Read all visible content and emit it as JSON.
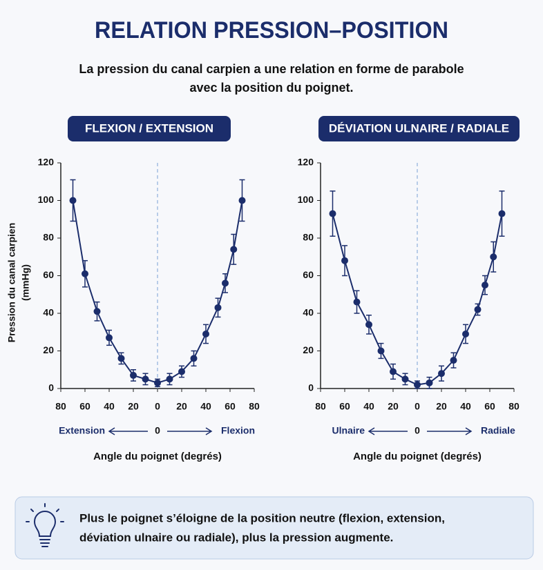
{
  "header": {
    "title": "RELATION PRESSION–POSITION",
    "subtitle": [
      "La pression du canal carpien a une relation en forme de parabole",
      "avec la position du poignet."
    ]
  },
  "chart_data": [
    {
      "type": "scatter",
      "title": "FLEXION / EXTENSION",
      "color": "#1b2d6b",
      "ylabel": [
        "Pression du canal carpien",
        "(mmHg)"
      ],
      "xlabel": "Angle du poignet (degrés)",
      "direction_labels": {
        "left": "Extension",
        "center": "0",
        "right": "Flexion"
      },
      "x": [
        -70,
        -60,
        -50,
        -40,
        -30,
        -20,
        -10,
        0,
        10,
        20,
        30,
        40,
        50,
        56,
        63,
        70
      ],
      "values": [
        100,
        61,
        41,
        27,
        16,
        7,
        5,
        3,
        5,
        9,
        16,
        29,
        43,
        56,
        74,
        100
      ],
      "errors": [
        11,
        7,
        5,
        4,
        3,
        3,
        3,
        2,
        3,
        3,
        4,
        5,
        5,
        5,
        8,
        11
      ],
      "reference_line_x": 0,
      "xlim": [
        -80,
        80
      ],
      "xticks": [
        {
          "value": -80,
          "label": "80"
        },
        {
          "value": -60,
          "label": "60"
        },
        {
          "value": -40,
          "label": "40"
        },
        {
          "value": -20,
          "label": "20"
        },
        0,
        20,
        40,
        60,
        80
      ],
      "ylim": [
        0,
        120
      ],
      "yticks": [
        0,
        20,
        40,
        60,
        80,
        100,
        120
      ]
    },
    {
      "type": "scatter",
      "title": "DÉVIATION ULNAIRE / RADIALE",
      "color": "#1b2d6b",
      "xlabel": "Angle du poignet (degrés)",
      "direction_labels": {
        "left": "Ulnaire",
        "center": "0",
        "right": "Radiale"
      },
      "x": [
        -70,
        -60,
        -50,
        -40,
        -30,
        -20,
        -10,
        0,
        10,
        20,
        30,
        40,
        50,
        56,
        63,
        70
      ],
      "values": [
        93,
        68,
        46,
        34,
        20,
        9,
        5,
        2,
        3,
        8,
        15,
        29,
        42,
        55,
        70,
        93
      ],
      "errors": [
        12,
        8,
        6,
        5,
        4,
        4,
        3,
        2,
        3,
        4,
        4,
        5,
        3,
        5,
        8,
        12
      ],
      "reference_line_x": 0,
      "xlim": [
        -80,
        80
      ],
      "xticks": [
        {
          "value": -80,
          "label": "80"
        },
        {
          "value": -60,
          "label": "60"
        },
        {
          "value": -40,
          "label": "40"
        },
        {
          "value": -20,
          "label": "20"
        },
        0,
        20,
        40,
        60,
        80
      ],
      "ylim": [
        0,
        120
      ],
      "yticks": [
        0,
        20,
        40,
        60,
        80,
        100,
        120
      ]
    }
  ],
  "note": [
    "Plus le poignet s’éloigne de la position neutre (flexion, extension,",
    "déviation ulnaire ou radiale), plus la pression augmente."
  ]
}
